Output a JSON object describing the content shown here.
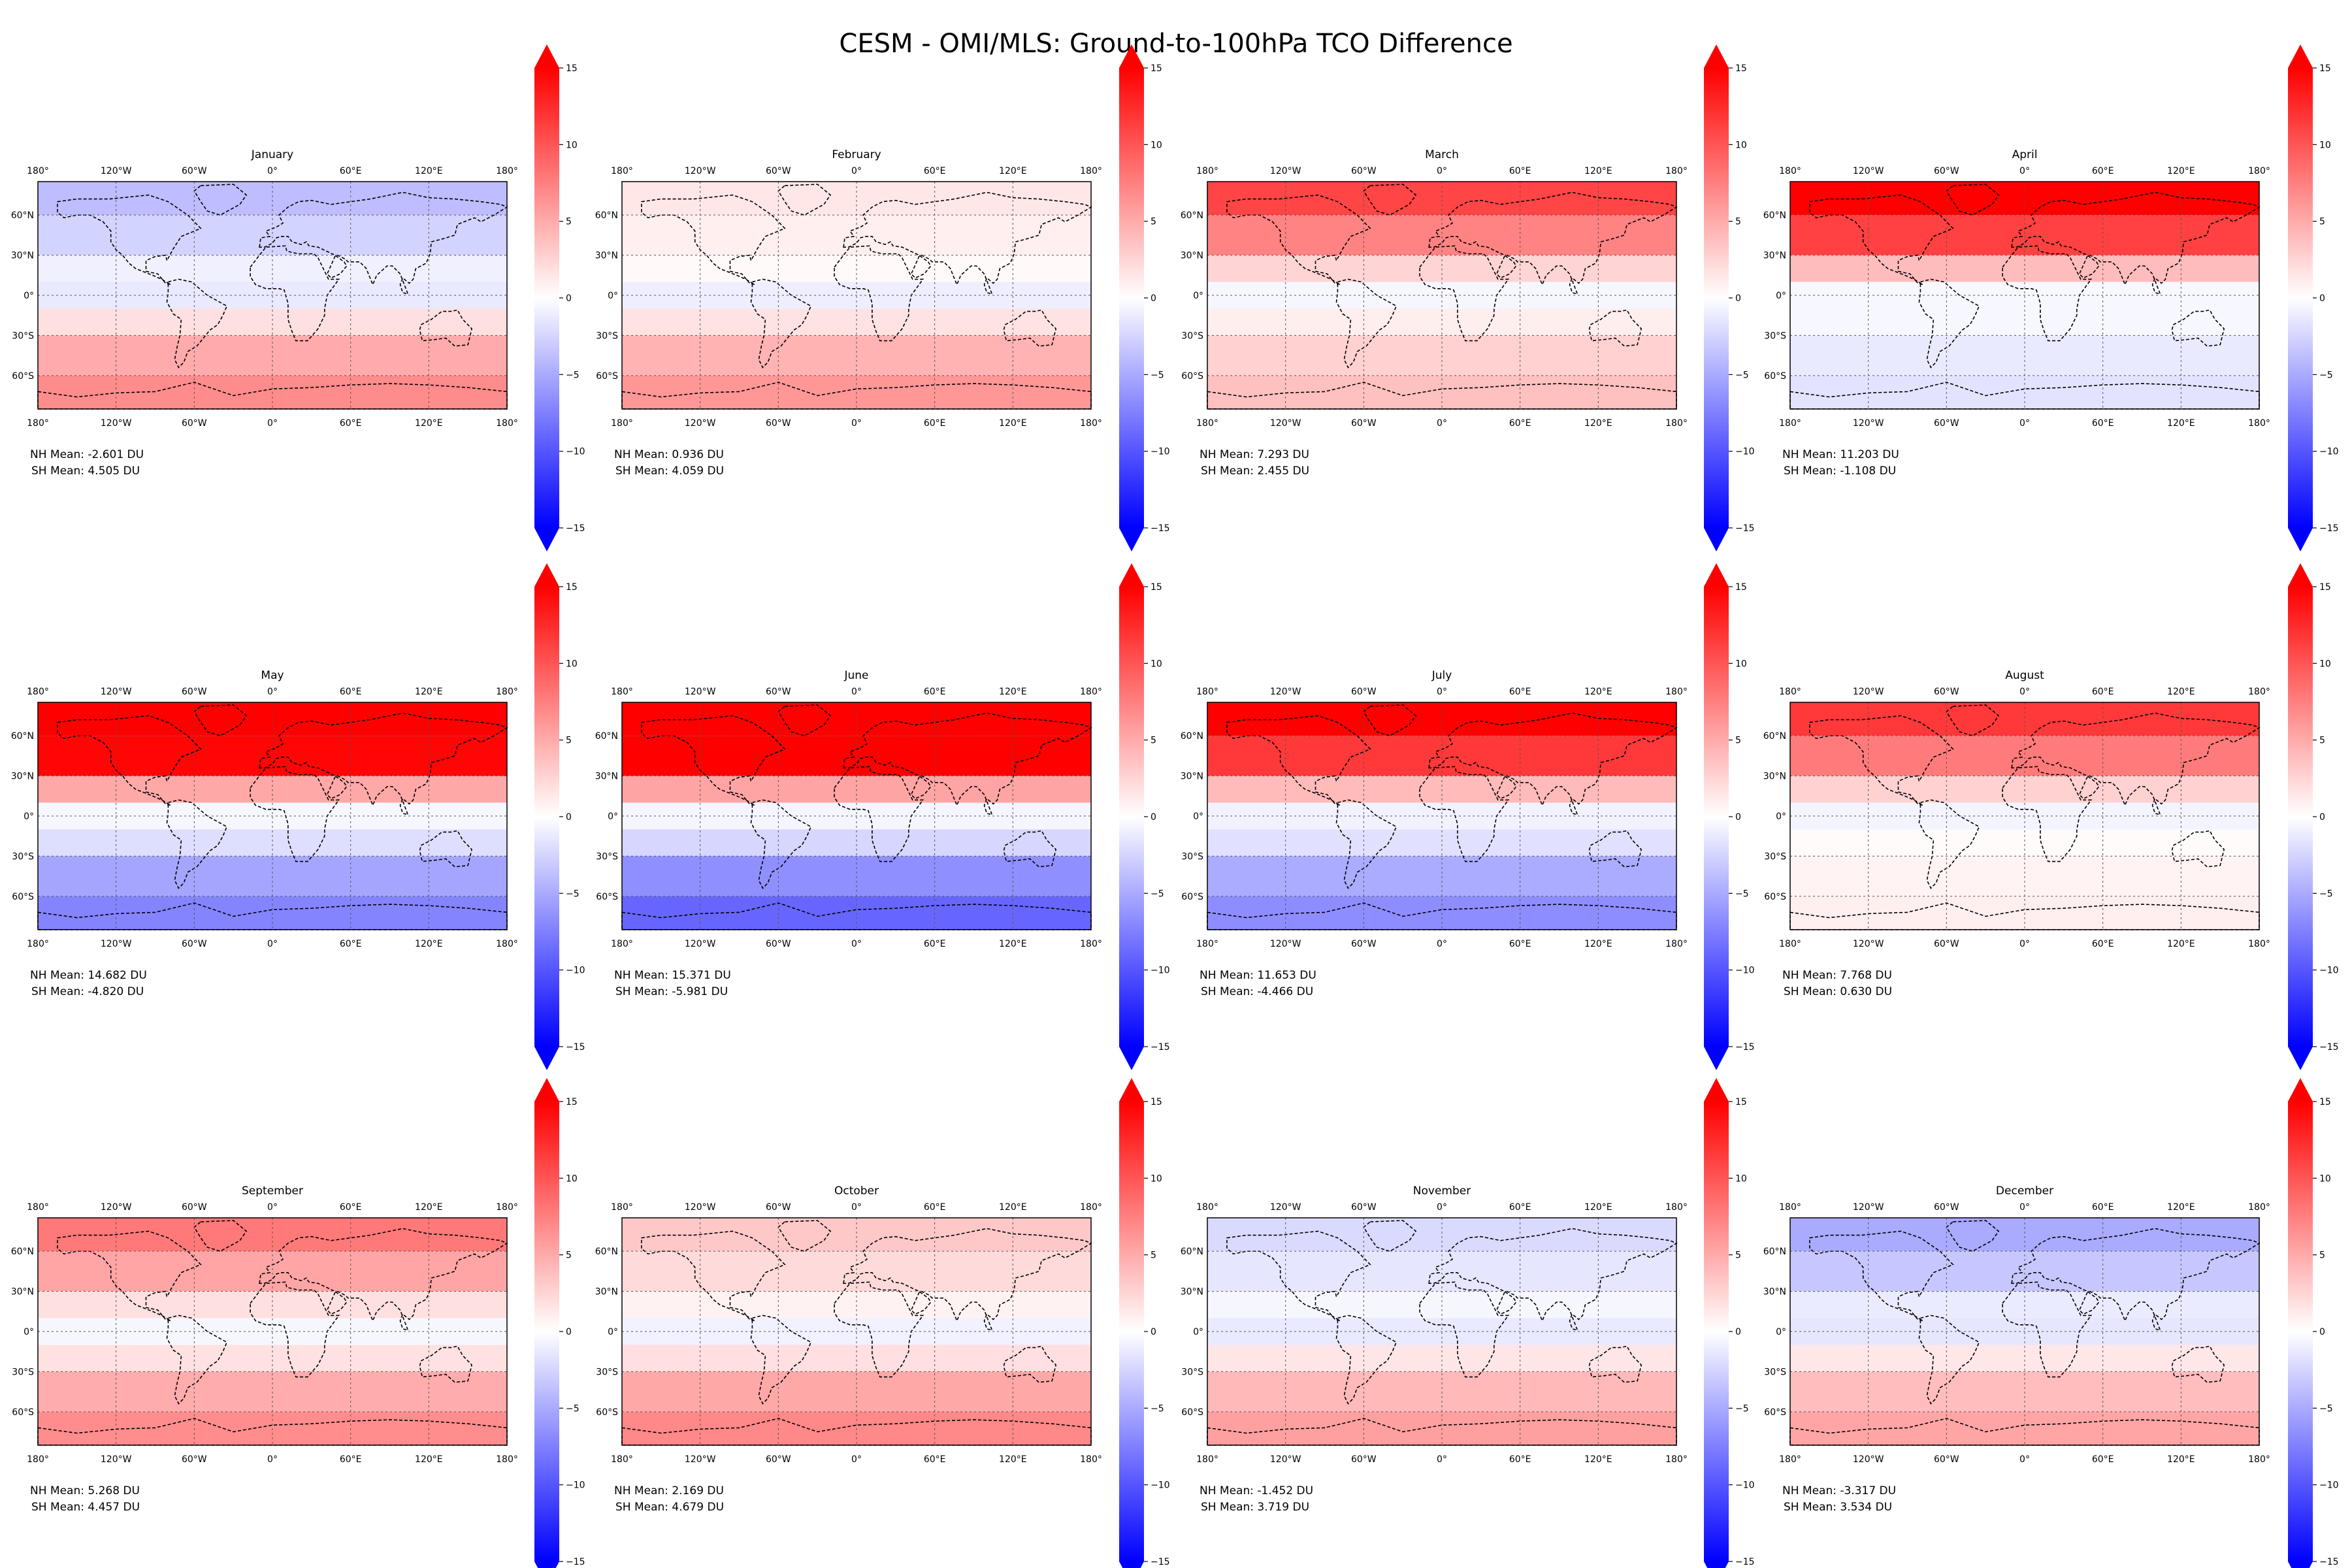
{
  "figure": {
    "title": "CESM - OMI/MLS: Ground-to-100hPa TCO Difference",
    "lon_labels": [
      "180°",
      "120°W",
      "60°W",
      "0°",
      "60°E",
      "120°E",
      "180°"
    ],
    "lat_labels": [
      "60°N",
      "30°N",
      "0°",
      "30°S",
      "60°S"
    ],
    "colorbar": {
      "ticks": [
        "15",
        "10",
        "5",
        "0",
        "−5",
        "−10",
        "−15"
      ],
      "min": -15,
      "max": 15,
      "cmap": "bwr",
      "low_color": "#0000ff",
      "mid_color": "#ffffff",
      "high_color": "#ff0000"
    },
    "panels": [
      {
        "month": "January",
        "nh": "NH Mean: -2.601 DU",
        "sh": "SH Mean: 4.505 DU",
        "nh_val": -2.601,
        "sh_val": 4.505
      },
      {
        "month": "February",
        "nh": "NH Mean: 0.936 DU",
        "sh": "SH Mean: 4.059 DU",
        "nh_val": 0.936,
        "sh_val": 4.059
      },
      {
        "month": "March",
        "nh": "NH Mean: 7.293 DU",
        "sh": "SH Mean: 2.455 DU",
        "nh_val": 7.293,
        "sh_val": 2.455
      },
      {
        "month": "April",
        "nh": "NH Mean: 11.203 DU",
        "sh": "SH Mean: -1.108 DU",
        "nh_val": 11.203,
        "sh_val": -1.108
      },
      {
        "month": "May",
        "nh": "NH Mean: 14.682 DU",
        "sh": "SH Mean: -4.820 DU",
        "nh_val": 14.682,
        "sh_val": -4.82
      },
      {
        "month": "June",
        "nh": "NH Mean: 15.371 DU",
        "sh": "SH Mean: -5.981 DU",
        "nh_val": 15.371,
        "sh_val": -5.981
      },
      {
        "month": "July",
        "nh": "NH Mean: 11.653 DU",
        "sh": "SH Mean: -4.466 DU",
        "nh_val": 11.653,
        "sh_val": -4.466
      },
      {
        "month": "August",
        "nh": "NH Mean: 7.768 DU",
        "sh": "SH Mean: 0.630 DU",
        "nh_val": 7.768,
        "sh_val": 0.63
      },
      {
        "month": "September",
        "nh": "NH Mean: 5.268 DU",
        "sh": "SH Mean: 4.457 DU",
        "nh_val": 5.268,
        "sh_val": 4.457
      },
      {
        "month": "October",
        "nh": "NH Mean: 2.169 DU",
        "sh": "SH Mean: 4.679 DU",
        "nh_val": 2.169,
        "sh_val": 4.679
      },
      {
        "month": "November",
        "nh": "NH Mean: -1.452 DU",
        "sh": "SH Mean: 3.719 DU",
        "nh_val": -1.452,
        "sh_val": 3.719
      },
      {
        "month": "December",
        "nh": "NH Mean: -3.317 DU",
        "sh": "SH Mean: 3.534 DU",
        "nh_val": -3.317,
        "sh_val": 3.534
      }
    ]
  }
}
